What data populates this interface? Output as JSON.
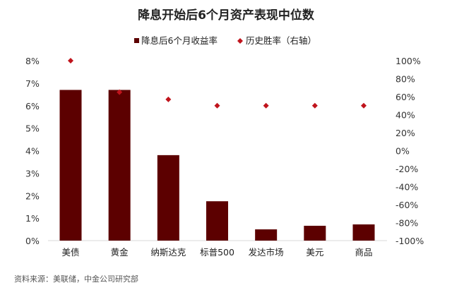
{
  "chart_data": {
    "type": "bar",
    "title": "降息开始后6个月资产表现中位数",
    "categories": [
      "美债",
      "黄金",
      "纳斯达克",
      "标普500",
      "发达市场",
      "美元",
      "商品"
    ],
    "series": [
      {
        "name": "降息后6个月收益率",
        "type": "bar",
        "axis": "left",
        "values": [
          6.7,
          6.7,
          3.8,
          1.75,
          0.5,
          0.66,
          0.72
        ]
      },
      {
        "name": "历史胜率（右轴）",
        "type": "scatter",
        "axis": "right",
        "values": [
          100,
          65,
          57,
          50,
          50,
          50,
          50
        ]
      }
    ],
    "left_axis": {
      "ylim": [
        0,
        8
      ],
      "ticks": [
        "0%",
        "1%",
        "2%",
        "3%",
        "4%",
        "5%",
        "6%",
        "7%",
        "8%"
      ]
    },
    "right_axis": {
      "ylim": [
        -100,
        100
      ],
      "ticks": [
        "-100%",
        "-80%",
        "-60%",
        "-40%",
        "-20%",
        "0%",
        "20%",
        "40%",
        "60%",
        "80%",
        "100%"
      ]
    },
    "legend_position": "top",
    "grid": false,
    "colors": {
      "bar": "#5c0000",
      "marker": "#c0141c"
    },
    "source": "资料来源：美联储，中金公司研究部"
  }
}
